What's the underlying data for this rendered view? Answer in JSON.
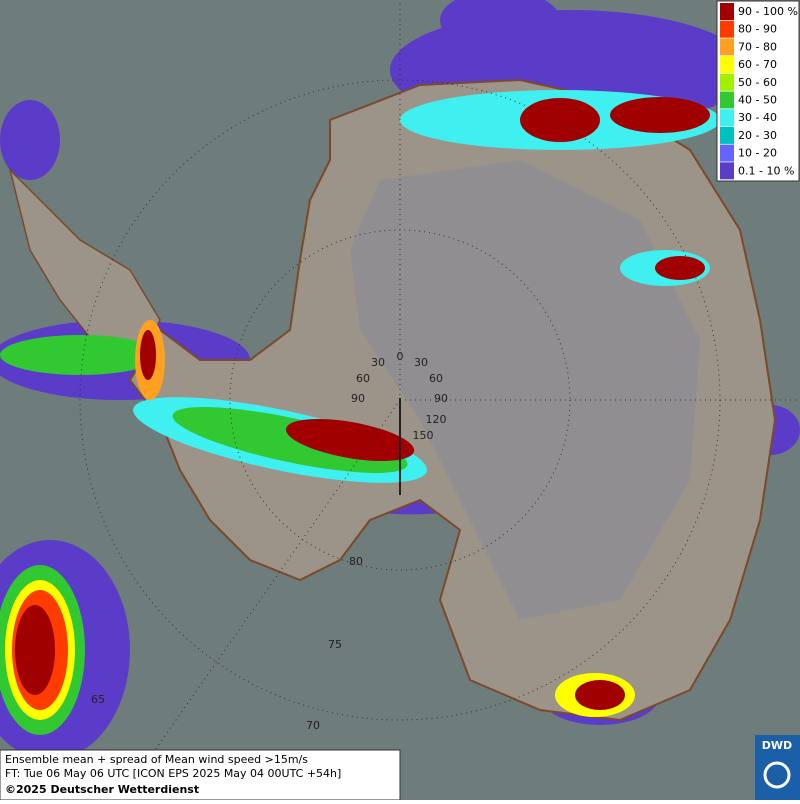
{
  "legend": {
    "items": [
      {
        "label": "90 - 100 %",
        "color": "#a00000"
      },
      {
        "label": "80 - 90",
        "color": "#ff3c00"
      },
      {
        "label": "70 - 80",
        "color": "#ffa020"
      },
      {
        "label": "60 - 70",
        "color": "#ffff00"
      },
      {
        "label": "50 - 60",
        "color": "#a0f000"
      },
      {
        "label": "40 - 50",
        "color": "#32c832"
      },
      {
        "label": "30 - 40",
        "color": "#40f0f0"
      },
      {
        "label": "20 - 30",
        "color": "#00c0c0"
      },
      {
        "label": "10 - 20",
        "color": "#6464ff"
      },
      {
        "label": "0.1 - 10 %",
        "color": "#5a3cc8"
      }
    ]
  },
  "grid_labels": [
    "0",
    "30",
    "30",
    "60",
    "60",
    "90",
    "90",
    "120",
    "150",
    "80",
    "75",
    "70",
    "65"
  ],
  "footer": {
    "lines": [
      "Ensemble mean + spread of Mean wind speed >15m/s",
      "FT: Tue 06 May 06 UTC [ICON EPS 2025 May 04 00UTC +54h]",
      "©2025 Deutscher Wetterdienst"
    ]
  },
  "logo": {
    "text": "DWD"
  }
}
